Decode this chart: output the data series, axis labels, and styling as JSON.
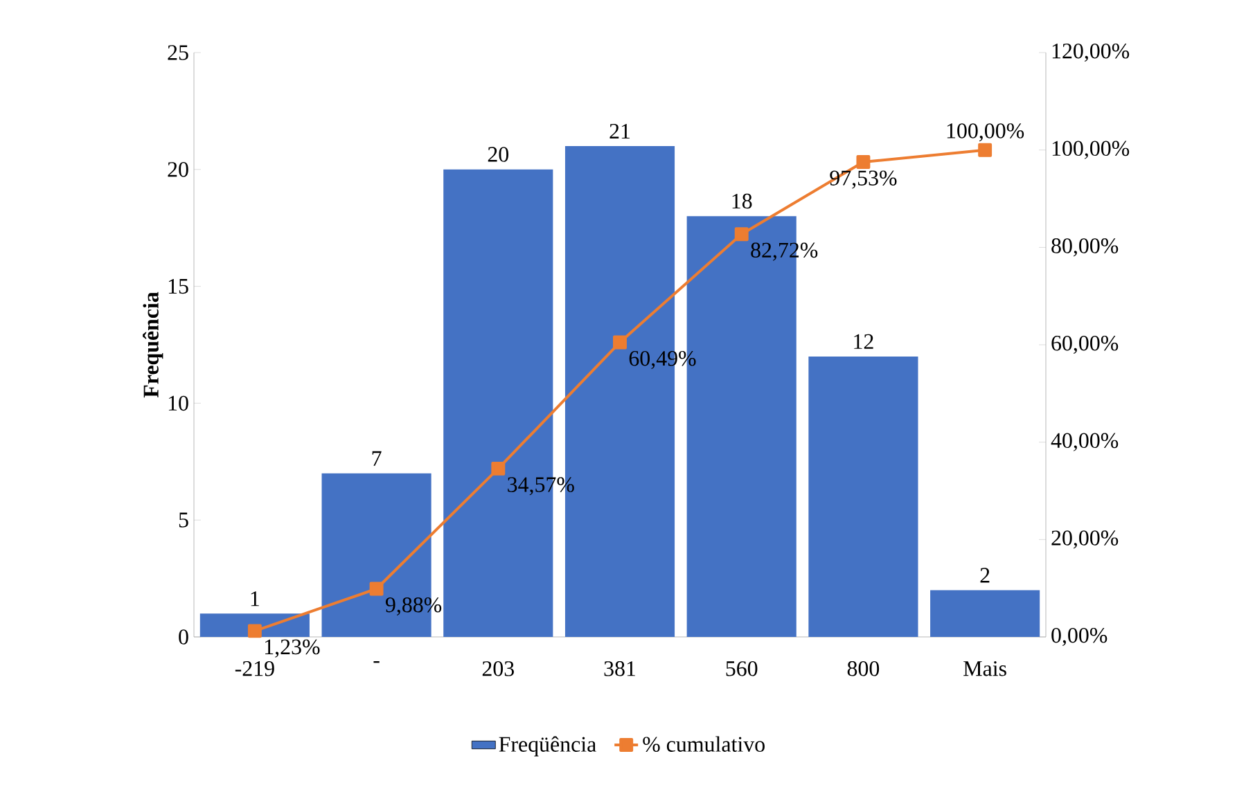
{
  "chart_data": {
    "type": "bar",
    "categories": [
      "-219",
      "-",
      "203",
      "381",
      "560",
      "800",
      "Mais"
    ],
    "ylabel": "Frequência",
    "ylim": [
      0,
      25
    ],
    "yticks": [
      0,
      5,
      10,
      15,
      20,
      25
    ],
    "y2lim": [
      0,
      120
    ],
    "y2ticks": [
      {
        "value": 0,
        "label": "0,00%"
      },
      {
        "value": 20,
        "label": "20,00%"
      },
      {
        "value": 40,
        "label": "40,00%"
      },
      {
        "value": 60,
        "label": "60,00%"
      },
      {
        "value": 80,
        "label": "80,00%"
      },
      {
        "value": 100,
        "label": "100,00%"
      },
      {
        "value": 120,
        "label": "120,00%"
      }
    ],
    "legend": "bottom",
    "data_labels": true,
    "series": [
      {
        "name": "Freqüência",
        "color": "#4472c4",
        "values": [
          1,
          7,
          20,
          21,
          18,
          12,
          2
        ]
      },
      {
        "name": "% cumulativo",
        "type": "line",
        "axis": "y2",
        "color": "#ed7d31",
        "marker": "square",
        "values": [
          1.23,
          9.88,
          34.57,
          60.49,
          82.72,
          97.53,
          100
        ],
        "value_labels": [
          "1,23%",
          "9,88%",
          "34,57%",
          "60,49%",
          "82,72%",
          "97,53%",
          "100,00%"
        ]
      }
    ]
  }
}
